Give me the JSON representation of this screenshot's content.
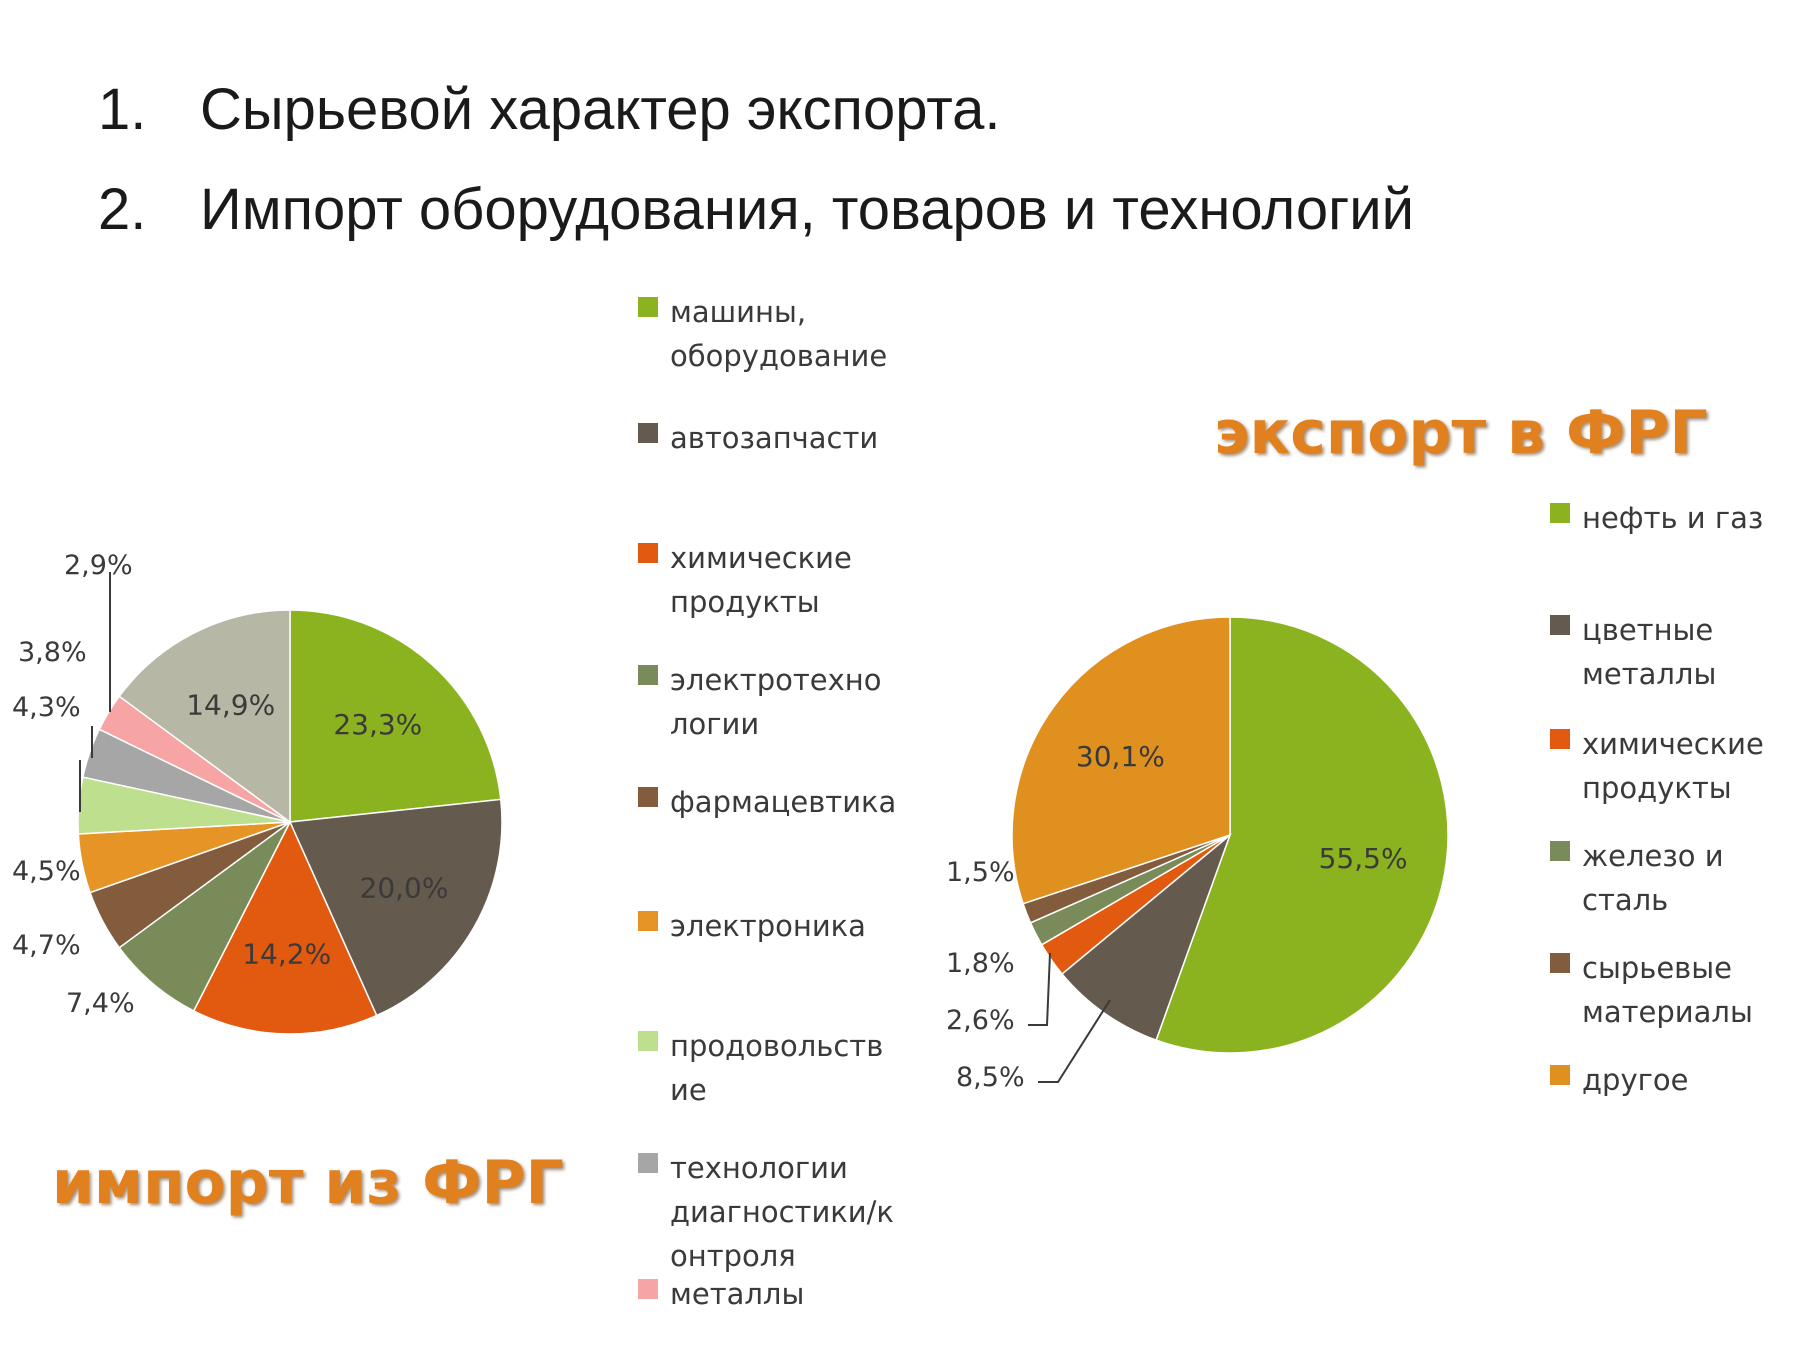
{
  "slide": {
    "bullets": [
      {
        "number": "1.",
        "text": "Сырьевой характер экспорта."
      },
      {
        "number": "2.",
        "text": "Импорт  оборудования, товаров и технологий"
      }
    ]
  },
  "chart_data": [
    {
      "type": "pie",
      "title": "импорт из  ФРГ",
      "legend_position": "right",
      "slices": [
        {
          "label": "машины,\nоборудование",
          "value": 23.3,
          "value_label": "23,3%",
          "color": "#8ab31f"
        },
        {
          "label": "автозапчасти",
          "value": 20.0,
          "value_label": "20,0%",
          "color": "#655a4e"
        },
        {
          "label": "химические\nпродукты",
          "value": 14.2,
          "value_label": "14,2%",
          "color": "#e25a10"
        },
        {
          "label": "электротехно\nлогии",
          "value": 7.4,
          "value_label": "7,4%",
          "color": "#788b59"
        },
        {
          "label": "фармацевтика",
          "value": 4.7,
          "value_label": "4,7%",
          "color": "#835b3d"
        },
        {
          "label": "электроника",
          "value": 4.5,
          "value_label": "4,5%",
          "color": "#e59425"
        },
        {
          "label": "продовольств\nие",
          "value": 4.3,
          "value_label": "4,3%",
          "color": "#bedf8e"
        },
        {
          "label": "технологии\nдиагностики/к\nонтроля",
          "value": 3.8,
          "value_label": "3,8%",
          "color": "#a6a6a6"
        },
        {
          "label": "металлы",
          "value": 2.9,
          "value_label": "2,9%",
          "color": "#f7a4a4"
        },
        {
          "label": "",
          "value": 14.9,
          "value_label": "14,9%",
          "color": "#b7b7a6"
        }
      ]
    },
    {
      "type": "pie",
      "title": "экспорт в ФРГ",
      "legend_position": "right",
      "slices": [
        {
          "label": "нефть  и газ",
          "value": 55.5,
          "value_label": "55,5%",
          "color": "#8ab31f"
        },
        {
          "label": "цветные\nметаллы",
          "value": 8.5,
          "value_label": "8,5%",
          "color": "#655a4e"
        },
        {
          "label": "химические\nпродукты",
          "value": 2.6,
          "value_label": "2,6%",
          "color": "#e25a10"
        },
        {
          "label": "железо и\nсталь",
          "value": 1.8,
          "value_label": "1,8%",
          "color": "#788b59"
        },
        {
          "label": "сырьевые\nматериалы",
          "value": 1.5,
          "value_label": "1,5%",
          "color": "#835b3d"
        },
        {
          "label": "другое",
          "value": 30.1,
          "value_label": "30,1%",
          "color": "#e0901e"
        }
      ]
    }
  ]
}
